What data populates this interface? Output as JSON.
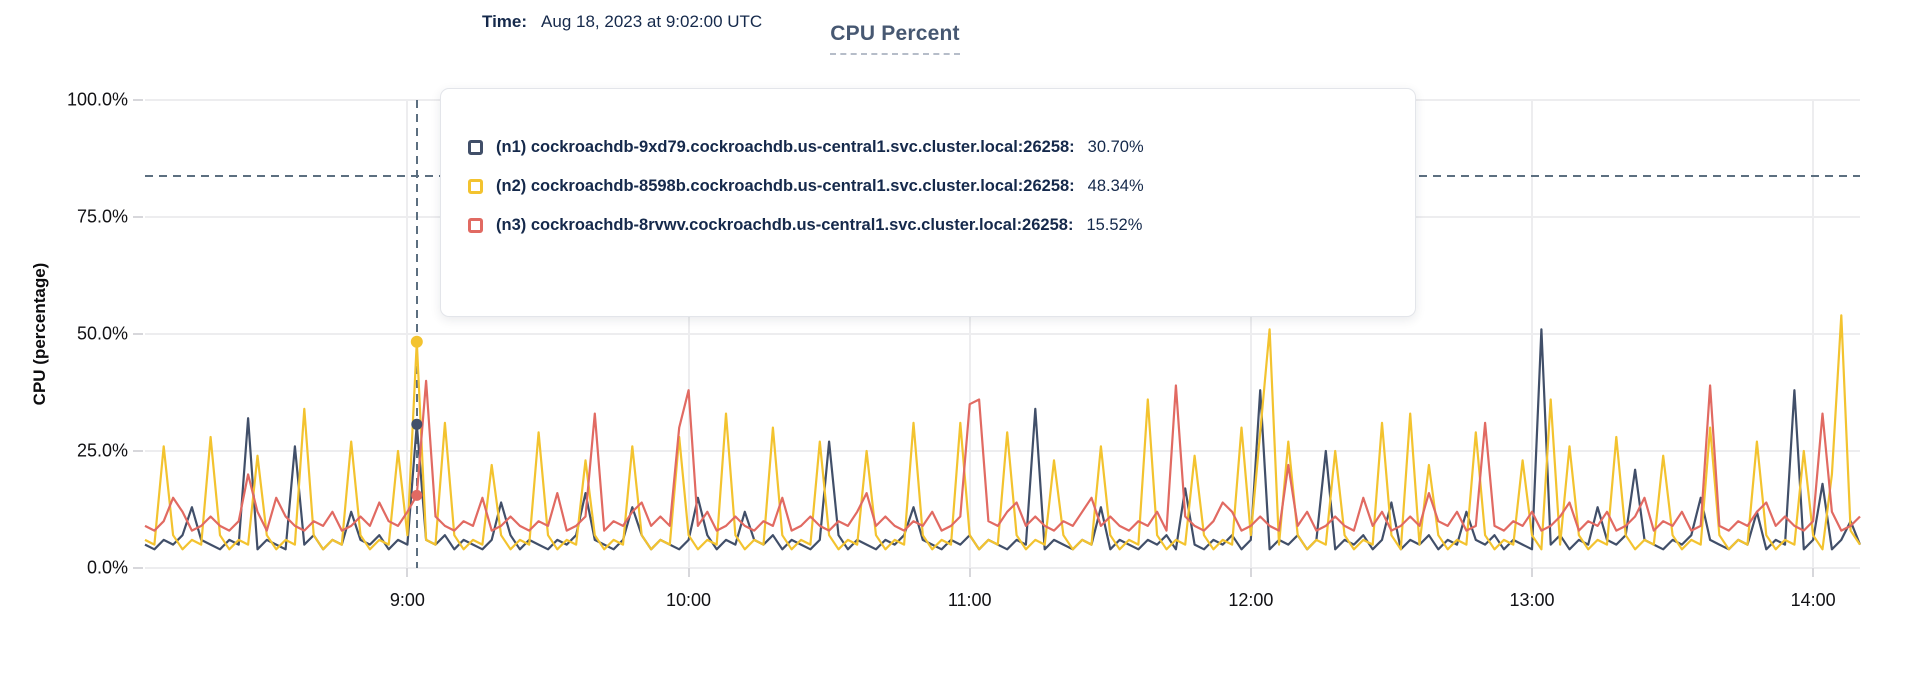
{
  "title": "CPU Percent",
  "y_axis_title": "CPU (percentage)",
  "tooltip": {
    "time_label": "Time:",
    "time_value": "Aug 18, 2023 at 9:02:00 UTC",
    "rows": [
      {
        "label": "(n1) cockroachdb-9xd79.cockroachdb.us-central1.svc.cluster.local:26258:",
        "value": "30.70%",
        "color": "#414f69"
      },
      {
        "label": "(n2) cockroachdb-8598b.cockroachdb.us-central1.svc.cluster.local:26258:",
        "value": "48.34%",
        "color": "#f3c32f"
      },
      {
        "label": "(n3) cockroachdb-8rvwv.cockroachdb.us-central1.svc.cluster.local:26258:",
        "value": "15.52%",
        "color": "#e16a62"
      }
    ]
  },
  "colors": {
    "series_n1": "#414f69",
    "series_n2": "#f3c32f",
    "series_n3": "#e16a62",
    "title_text": "#475872",
    "tooltip_text": "#15294b",
    "grid": "#ededef",
    "guide_dash": "#5c6f80"
  },
  "chart_data": {
    "type": "line",
    "title": "CPU Percent",
    "xlabel": "",
    "ylabel": "CPU (percentage)",
    "grid": true,
    "legend_position": "tooltip-overlay",
    "ylim": [
      0,
      100
    ],
    "y_ticks": [
      "0.0%",
      "25.0%",
      "50.0%",
      "75.0%",
      "100.0%"
    ],
    "y_tick_values": [
      0,
      25,
      50,
      75,
      100
    ],
    "x_ticks": [
      "9:00",
      "10:00",
      "11:00",
      "12:00",
      "13:00",
      "14:00"
    ],
    "x_tick_minutes": [
      540,
      600,
      660,
      720,
      780,
      840
    ],
    "x_range_minutes": [
      484,
      850
    ],
    "x_step_minutes": 2,
    "threshold_percent": 83.8,
    "hover": {
      "minute": 542,
      "time": "9:02",
      "values": [
        30.7,
        48.34,
        15.52
      ]
    },
    "series": [
      {
        "name": "(n1) cockroachdb-9xd79.cockroachdb.us-central1.svc.cluster.local:26258",
        "color": "#414f69",
        "hover_value": 30.7,
        "values": [
          5,
          4,
          6,
          5,
          7,
          13,
          6,
          5,
          4,
          6,
          5,
          32,
          4,
          6,
          5,
          4,
          26,
          5,
          7,
          4,
          6,
          5,
          12,
          6,
          5,
          7,
          4,
          6,
          5,
          30.7,
          6,
          5,
          7,
          4,
          6,
          5,
          4,
          6,
          14,
          7,
          4,
          6,
          5,
          4,
          6,
          5,
          7,
          16,
          6,
          5,
          4,
          6,
          13,
          7,
          4,
          6,
          5,
          4,
          6,
          15,
          7,
          4,
          6,
          5,
          12,
          6,
          5,
          7,
          4,
          6,
          5,
          4,
          6,
          27,
          7,
          4,
          6,
          5,
          4,
          6,
          5,
          7,
          13,
          6,
          5,
          4,
          6,
          5,
          7,
          4,
          6,
          5,
          4,
          6,
          5,
          34,
          4,
          6,
          5,
          4,
          6,
          5,
          13,
          4,
          6,
          5,
          4,
          6,
          5,
          7,
          4,
          17,
          5,
          4,
          6,
          5,
          7,
          4,
          6,
          38,
          4,
          6,
          5,
          7,
          4,
          6,
          25,
          4,
          6,
          5,
          7,
          4,
          6,
          14,
          4,
          6,
          5,
          7,
          4,
          6,
          5,
          12,
          6,
          5,
          7,
          4,
          6,
          5,
          4,
          51,
          5,
          7,
          4,
          6,
          5,
          13,
          6,
          5,
          7,
          21,
          6,
          5,
          4,
          6,
          5,
          7,
          15,
          6,
          5,
          4,
          6,
          5,
          12,
          4,
          6,
          5,
          38,
          4,
          6,
          18,
          4,
          6,
          10,
          5
        ]
      },
      {
        "name": "(n2) cockroachdb-8598b.cockroachdb.us-central1.svc.cluster.local:26258",
        "color": "#f3c32f",
        "hover_value": 48.34,
        "values": [
          6,
          5,
          26,
          7,
          4,
          6,
          5,
          28,
          7,
          4,
          6,
          5,
          24,
          7,
          4,
          6,
          5,
          34,
          7,
          4,
          6,
          5,
          27,
          7,
          4,
          6,
          5,
          25,
          7,
          48.34,
          6,
          5,
          31,
          7,
          4,
          6,
          5,
          22,
          7,
          4,
          6,
          5,
          29,
          7,
          4,
          6,
          5,
          23,
          7,
          4,
          6,
          5,
          26,
          7,
          4,
          6,
          5,
          28,
          7,
          4,
          6,
          5,
          33,
          7,
          4,
          6,
          5,
          30,
          7,
          4,
          6,
          5,
          27,
          7,
          4,
          6,
          5,
          25,
          7,
          4,
          6,
          5,
          31,
          7,
          4,
          6,
          5,
          31,
          7,
          4,
          6,
          5,
          29,
          7,
          4,
          6,
          5,
          23,
          7,
          4,
          6,
          5,
          26,
          7,
          4,
          6,
          5,
          36,
          7,
          4,
          6,
          5,
          24,
          7,
          4,
          6,
          5,
          30,
          7,
          29,
          51,
          5,
          27,
          7,
          4,
          6,
          5,
          25,
          7,
          4,
          6,
          5,
          31,
          7,
          4,
          33,
          5,
          22,
          7,
          4,
          6,
          5,
          29,
          7,
          4,
          6,
          5,
          23,
          7,
          4,
          36,
          5,
          26,
          7,
          4,
          6,
          5,
          28,
          7,
          4,
          6,
          5,
          24,
          7,
          4,
          6,
          5,
          30,
          7,
          4,
          6,
          5,
          27,
          7,
          4,
          6,
          5,
          25,
          7,
          4,
          20,
          54,
          8,
          5
        ]
      },
      {
        "name": "(n3) cockroachdb-8rvwv.cockroachdb.us-central1.svc.cluster.local:26258",
        "color": "#e16a62",
        "hover_value": 15.52,
        "values": [
          9,
          8,
          10,
          15,
          12,
          8,
          9,
          11,
          9,
          8,
          10,
          20,
          12,
          8,
          15,
          11,
          9,
          8,
          10,
          9,
          12,
          8,
          9,
          11,
          9,
          14,
          10,
          9,
          12,
          15.52,
          40,
          11,
          9,
          8,
          10,
          9,
          15,
          8,
          9,
          11,
          9,
          8,
          10,
          9,
          16,
          8,
          9,
          11,
          33,
          8,
          10,
          9,
          12,
          14,
          9,
          11,
          9,
          30,
          38,
          9,
          12,
          8,
          9,
          11,
          9,
          8,
          10,
          9,
          15,
          8,
          9,
          11,
          9,
          8,
          10,
          9,
          12,
          16,
          9,
          11,
          9,
          8,
          10,
          9,
          12,
          8,
          9,
          11,
          35,
          36,
          10,
          9,
          12,
          14,
          9,
          11,
          9,
          8,
          10,
          9,
          12,
          15,
          9,
          11,
          9,
          8,
          10,
          9,
          12,
          8,
          39,
          11,
          9,
          8,
          10,
          14,
          12,
          8,
          9,
          11,
          9,
          8,
          22,
          9,
          12,
          8,
          9,
          11,
          9,
          8,
          15,
          9,
          12,
          8,
          9,
          11,
          9,
          16,
          10,
          9,
          12,
          8,
          9,
          31,
          9,
          8,
          10,
          9,
          12,
          8,
          9,
          11,
          14,
          8,
          10,
          9,
          12,
          8,
          9,
          11,
          15,
          8,
          10,
          9,
          12,
          8,
          9,
          39,
          9,
          8,
          10,
          9,
          12,
          14,
          9,
          11,
          9,
          8,
          10,
          33,
          12,
          8,
          9,
          11
        ]
      }
    ]
  }
}
